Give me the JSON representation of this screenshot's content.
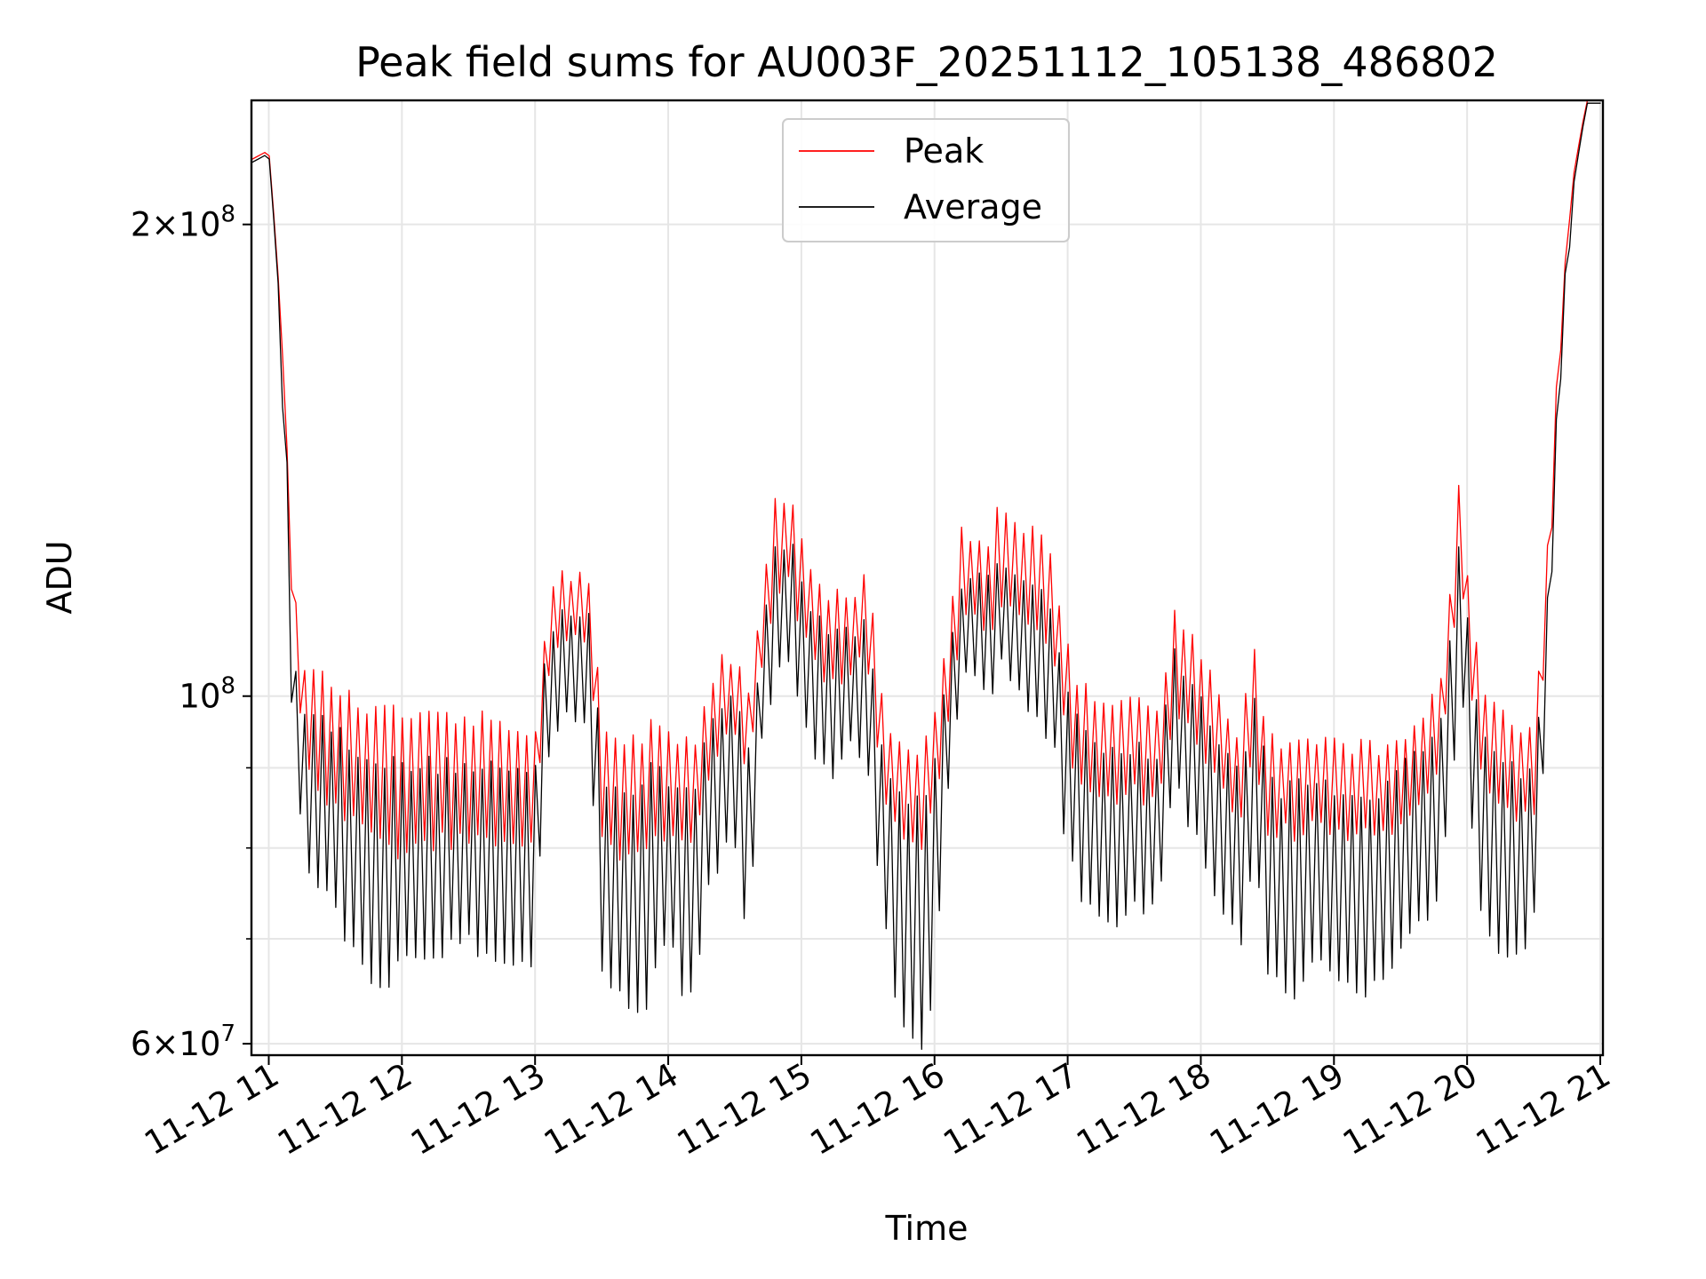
{
  "chart_data": {
    "type": "line",
    "title": "Peak field sums for AU003F_20251112_105138_486802",
    "xlabel": "Time",
    "ylabel": "ADU",
    "yscale": "log",
    "ylim": [
      59000000,
      240000000
    ],
    "xlim_hours": [
      10.87,
      21.02
    ],
    "x_ticks": [
      {
        "hour": 11,
        "label": "11-12 11"
      },
      {
        "hour": 12,
        "label": "11-12 12"
      },
      {
        "hour": 13,
        "label": "11-12 13"
      },
      {
        "hour": 14,
        "label": "11-12 14"
      },
      {
        "hour": 15,
        "label": "11-12 15"
      },
      {
        "hour": 16,
        "label": "11-12 16"
      },
      {
        "hour": 17,
        "label": "11-12 17"
      },
      {
        "hour": 18,
        "label": "11-12 18"
      },
      {
        "hour": 19,
        "label": "11-12 19"
      },
      {
        "hour": 20,
        "label": "11-12 20"
      },
      {
        "hour": 21,
        "label": "11-12 21"
      }
    ],
    "y_major_ticks": [
      {
        "value": 60000000,
        "mant": "6",
        "exp": "7"
      },
      {
        "value": 100000000,
        "mant": "",
        "exp": "8"
      },
      {
        "value": 200000000,
        "mant": "2",
        "exp": "8"
      }
    ],
    "y_minor_gridlines": [
      70000000,
      80000000,
      90000000
    ],
    "legend": {
      "location": "upper center",
      "entries": [
        "Peak",
        "Average"
      ]
    },
    "series": [
      {
        "name": "Peak",
        "color": "#ff0000",
        "envelope_note": "sampled every ~2 min; values oscillate between the listed upper and lower envelope",
        "knots_hours": [
          10.87,
          11.0,
          11.08,
          11.15,
          11.2,
          11.25,
          11.3,
          11.4,
          11.5,
          11.6,
          11.7,
          11.8,
          11.9,
          12.0,
          12.1,
          12.2,
          12.3,
          12.4,
          12.5,
          12.6,
          12.7,
          12.8,
          12.9,
          13.0,
          13.05,
          13.1,
          13.2,
          13.3,
          13.4,
          13.45,
          13.5,
          13.6,
          13.7,
          13.8,
          13.9,
          14.0,
          14.1,
          14.2,
          14.3,
          14.4,
          14.5,
          14.6,
          14.7,
          14.8,
          14.9,
          15.0,
          15.1,
          15.2,
          15.3,
          15.4,
          15.5,
          15.6,
          15.7,
          15.8,
          15.9,
          16.0,
          16.1,
          16.2,
          16.3,
          16.4,
          16.5,
          16.6,
          16.7,
          16.8,
          16.9,
          17.0,
          17.1,
          17.2,
          17.3,
          17.4,
          17.5,
          17.6,
          17.7,
          17.8,
          17.9,
          18.0,
          18.1,
          18.2,
          18.3,
          18.4,
          18.5,
          18.6,
          18.7,
          18.8,
          18.9,
          19.0,
          19.1,
          19.2,
          19.3,
          19.4,
          19.5,
          19.6,
          19.7,
          19.8,
          19.9,
          19.95,
          20.0,
          20.1,
          20.2,
          20.3,
          20.4,
          20.5,
          20.6,
          20.7,
          20.8,
          20.9,
          21.0
        ],
        "upper": [
          220000000,
          223000000,
          180000000,
          135000000,
          112000000,
          105000000,
          102000000,
          101000000,
          100000000,
          98000000,
          97000000,
          96000000,
          96000000,
          96000000,
          95000000,
          95000000,
          95000000,
          95000000,
          95000000,
          95000000,
          95000000,
          94000000,
          94000000,
          94000000,
          105000000,
          112000000,
          118000000,
          118000000,
          118000000,
          110000000,
          94000000,
          92000000,
          92000000,
          92000000,
          95000000,
          93000000,
          92000000,
          92000000,
          100000000,
          104000000,
          105000000,
          98000000,
          112000000,
          130000000,
          132000000,
          125000000,
          118000000,
          115000000,
          114000000,
          115000000,
          117000000,
          98000000,
          92000000,
          90000000,
          90000000,
          95000000,
          108000000,
          125000000,
          125000000,
          124000000,
          132000000,
          128000000,
          126000000,
          125000000,
          118000000,
          105000000,
          100000000,
          98000000,
          97000000,
          97000000,
          98000000,
          96000000,
          96000000,
          112000000,
          108000000,
          104000000,
          100000000,
          96000000,
          93000000,
          106000000,
          93000000,
          92000000,
          92000000,
          93000000,
          93000000,
          92000000,
          91000000,
          92000000,
          91000000,
          92000000,
          93000000,
          95000000,
          96000000,
          100000000,
          122000000,
          138000000,
          120000000,
          100000000,
          97000000,
          95000000,
          94000000,
          94000000,
          120000000,
          170000000,
          215000000,
          240000000,
          240000000
        ],
        "lower": [
          220000000,
          223000000,
          180000000,
          130000000,
          105000000,
          95000000,
          90000000,
          88000000,
          86000000,
          85000000,
          83000000,
          82000000,
          81000000,
          81000000,
          81000000,
          82000000,
          82000000,
          82000000,
          82000000,
          82000000,
          82000000,
          82000000,
          82000000,
          82000000,
          96000000,
          105000000,
          110000000,
          110000000,
          108000000,
          98000000,
          82000000,
          80000000,
          80000000,
          80000000,
          84000000,
          82000000,
          82000000,
          82000000,
          90000000,
          94000000,
          96000000,
          90000000,
          104000000,
          118000000,
          120000000,
          113000000,
          106000000,
          104000000,
          104000000,
          106000000,
          106000000,
          88000000,
          84000000,
          82000000,
          82000000,
          86000000,
          98000000,
          112000000,
          114000000,
          112000000,
          116000000,
          114000000,
          112000000,
          111000000,
          106000000,
          94000000,
          90000000,
          88000000,
          87000000,
          87000000,
          88000000,
          87000000,
          88000000,
          100000000,
          97000000,
          94000000,
          90000000,
          87000000,
          85000000,
          93000000,
          84000000,
          83000000,
          83000000,
          84000000,
          84000000,
          83000000,
          82000000,
          83000000,
          82000000,
          83000000,
          85000000,
          87000000,
          88000000,
          92000000,
          110000000,
          122000000,
          106000000,
          90000000,
          87000000,
          86000000,
          85000000,
          85000000,
          110000000,
          165000000,
          213000000,
          240000000,
          240000000
        ]
      },
      {
        "name": "Average",
        "color": "#000000",
        "envelope_note": "sampled every ~2 min; values oscillate between the listed upper and lower envelope",
        "knots_hours": [
          10.87,
          11.0,
          11.08,
          11.15,
          11.2,
          11.25,
          11.3,
          11.4,
          11.5,
          11.6,
          11.7,
          11.8,
          11.9,
          12.0,
          12.1,
          12.2,
          12.3,
          12.4,
          12.5,
          12.6,
          12.7,
          12.8,
          12.9,
          13.0,
          13.05,
          13.1,
          13.2,
          13.3,
          13.4,
          13.45,
          13.5,
          13.6,
          13.7,
          13.8,
          13.9,
          14.0,
          14.1,
          14.2,
          14.3,
          14.4,
          14.5,
          14.6,
          14.7,
          14.8,
          14.9,
          15.0,
          15.1,
          15.2,
          15.3,
          15.4,
          15.5,
          15.6,
          15.7,
          15.8,
          15.9,
          16.0,
          16.1,
          16.2,
          16.3,
          16.4,
          16.5,
          16.6,
          16.7,
          16.8,
          16.9,
          17.0,
          17.1,
          17.2,
          17.3,
          17.4,
          17.5,
          17.6,
          17.7,
          17.8,
          17.9,
          18.0,
          18.1,
          18.2,
          18.3,
          18.4,
          18.5,
          18.6,
          18.7,
          18.8,
          18.9,
          19.0,
          19.1,
          19.2,
          19.3,
          19.4,
          19.5,
          19.6,
          19.7,
          19.8,
          19.9,
          19.95,
          20.0,
          20.1,
          20.2,
          20.3,
          20.4,
          20.5,
          20.6,
          20.7,
          20.8,
          20.9,
          21.0
        ],
        "upper": [
          219000000,
          222000000,
          178000000,
          128000000,
          104000000,
          98000000,
          96000000,
          95000000,
          94000000,
          92000000,
          91000000,
          90000000,
          89000000,
          89000000,
          89000000,
          89000000,
          89000000,
          89000000,
          89000000,
          89000000,
          89000000,
          88000000,
          88000000,
          88000000,
          100000000,
          107000000,
          112000000,
          112000000,
          112000000,
          104000000,
          88000000,
          86000000,
          86000000,
          86000000,
          89000000,
          87000000,
          86000000,
          86000000,
          94000000,
          98000000,
          99000000,
          92000000,
          106000000,
          122000000,
          124000000,
          117000000,
          111000000,
          108000000,
          108000000,
          109000000,
          110000000,
          92000000,
          86000000,
          84000000,
          84000000,
          89000000,
          102000000,
          117000000,
          118000000,
          116000000,
          121000000,
          119000000,
          117000000,
          116000000,
          111000000,
          98000000,
          94000000,
          92000000,
          91000000,
          91000000,
          92000000,
          90000000,
          91000000,
          105000000,
          101000000,
          98000000,
          94000000,
          90000000,
          88000000,
          98000000,
          87000000,
          86000000,
          86000000,
          87000000,
          87000000,
          86000000,
          85000000,
          86000000,
          85000000,
          86000000,
          88000000,
          90000000,
          91000000,
          95000000,
          114000000,
          128000000,
          112000000,
          94000000,
          91000000,
          89000000,
          88000000,
          88000000,
          112000000,
          166000000,
          212000000,
          239000000,
          239000000
        ],
        "lower": [
          219000000,
          222000000,
          175000000,
          110000000,
          90000000,
          82000000,
          79000000,
          77000000,
          74000000,
          71000000,
          68000000,
          67000000,
          67000000,
          69000000,
          70000000,
          70000000,
          70000000,
          71000000,
          71000000,
          70000000,
          69000000,
          68000000,
          68000000,
          67000000,
          84000000,
          94000000,
          98000000,
          98000000,
          96000000,
          82000000,
          68000000,
          66000000,
          65000000,
          63000000,
          68000000,
          72000000,
          66000000,
          65000000,
          76000000,
          80000000,
          82000000,
          70000000,
          96000000,
          104000000,
          108000000,
          98000000,
          92000000,
          90000000,
          92000000,
          95000000,
          92000000,
          75000000,
          66000000,
          62000000,
          61000000,
          66000000,
          88000000,
          104000000,
          104000000,
          100000000,
          106000000,
          102000000,
          100000000,
          98000000,
          94000000,
          80000000,
          76000000,
          74000000,
          73000000,
          73000000,
          76000000,
          74000000,
          77000000,
          90000000,
          85000000,
          82000000,
          76000000,
          72000000,
          71000000,
          80000000,
          68000000,
          66000000,
          65000000,
          67000000,
          69000000,
          68000000,
          66000000,
          66000000,
          66000000,
          67000000,
          69000000,
          72000000,
          74000000,
          76000000,
          92000000,
          104000000,
          90000000,
          74000000,
          71000000,
          69000000,
          69000000,
          72000000,
          100000000,
          160000000,
          208000000,
          238000000,
          238000000
        ]
      }
    ]
  }
}
